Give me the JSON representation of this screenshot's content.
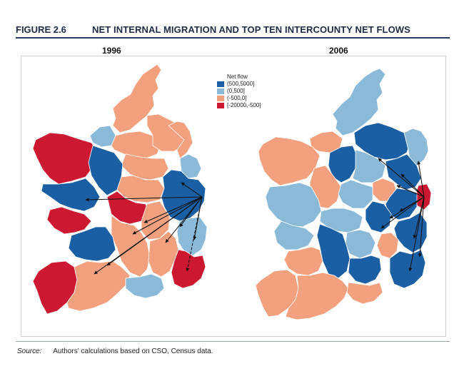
{
  "figure": {
    "label": "FIGURE 2.6",
    "title": "NET INTERNAL MIGRATION AND TOP TEN INTERCOUNTY NET FLOWS"
  },
  "panels": [
    {
      "year": "1996"
    },
    {
      "year": "2006"
    }
  ],
  "legend": {
    "title": "Net flow",
    "items": [
      {
        "label": "(500,5000]",
        "color": "#1a5fa3"
      },
      {
        "label": "(0,500]",
        "color": "#8bbad9"
      },
      {
        "label": "(-500,0]",
        "color": "#f2a07e"
      },
      {
        "label": "[-20000,-500]",
        "color": "#cc1931"
      }
    ]
  },
  "source": {
    "label": "Source:",
    "text": "Authors' calculations based on CSO, Census data."
  }
}
